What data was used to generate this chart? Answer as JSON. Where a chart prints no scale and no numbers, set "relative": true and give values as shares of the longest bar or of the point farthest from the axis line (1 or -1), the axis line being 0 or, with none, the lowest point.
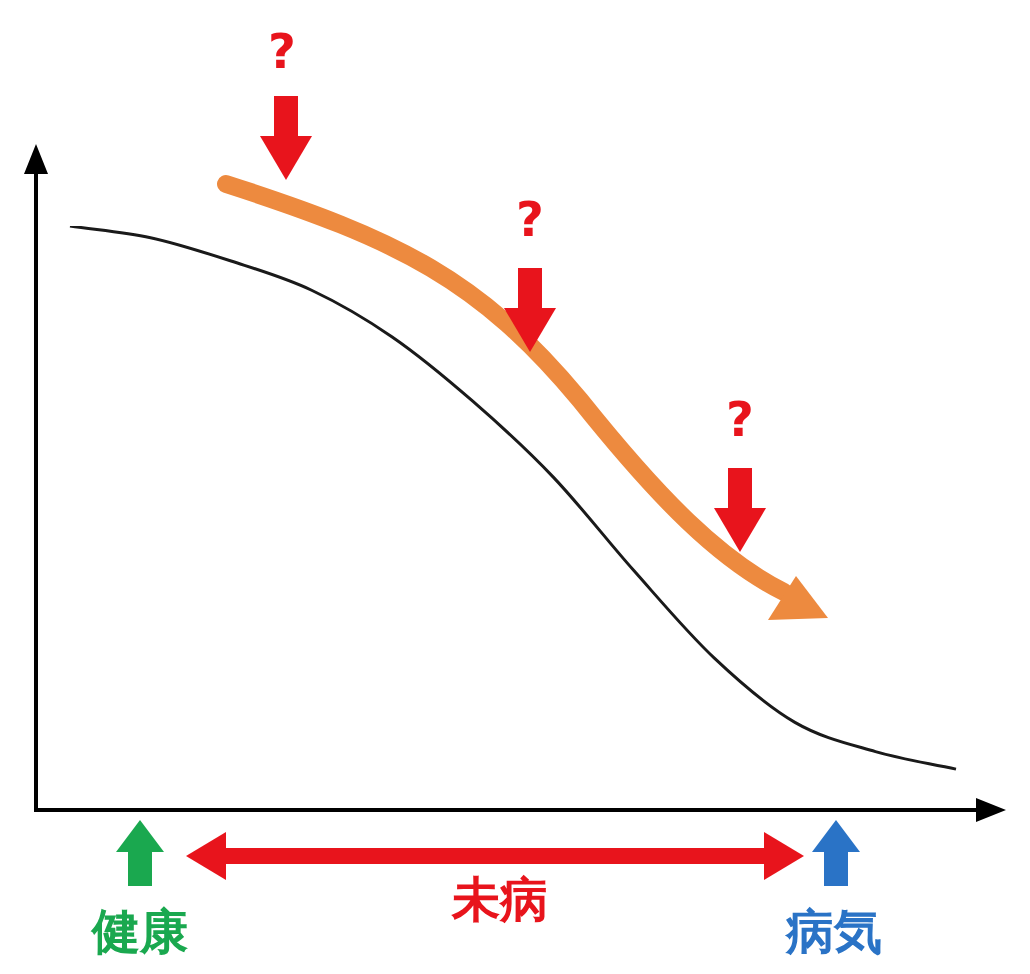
{
  "chart_data": {
    "type": "line",
    "relative": true,
    "categories": [
      null,
      null,
      null,
      null,
      null,
      null,
      null,
      null,
      null,
      null,
      null,
      null
    ],
    "series": [
      {
        "color": "#1a1a1a",
        "values": [
          1,
          0.98,
          0.94,
          0.89,
          0.81,
          0.7,
          0.57,
          0.41,
          0.26,
          0.15,
          0.1,
          0.07
        ]
      }
    ],
    "annotations": [
      "?",
      "?",
      "?",
      "健康",
      "未病",
      "病気"
    ],
    "marker": "none",
    "legend": false
  }
}
